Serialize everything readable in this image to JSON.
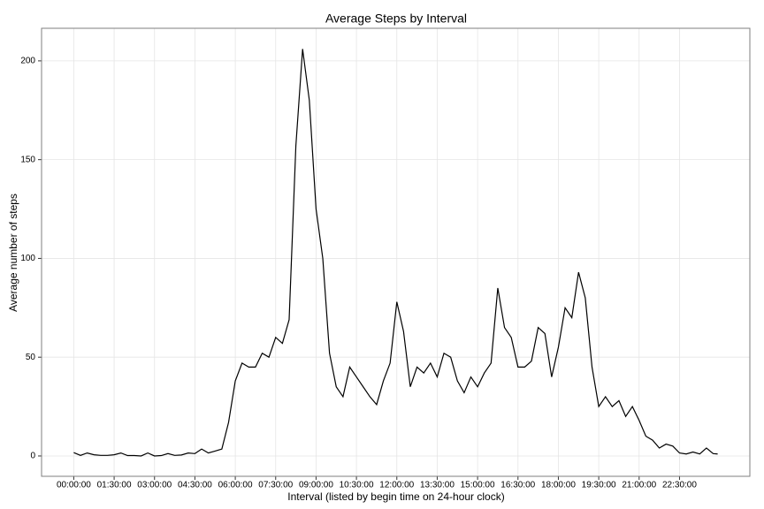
{
  "chart_data": {
    "type": "line",
    "title": "Average Steps by Interval",
    "xlabel": "Interval (listed by begin time on 24-hour clock)",
    "ylabel": "Average number of steps",
    "x": [
      0,
      900,
      1800,
      2700,
      3600,
      4500,
      5400,
      6300,
      7200,
      8100,
      9000,
      9900,
      10800,
      11700,
      12600,
      13500,
      14400,
      15300,
      16200,
      17100,
      18000,
      18900,
      19800,
      20700,
      21600,
      22500,
      23400,
      24300,
      25200,
      26100,
      27000,
      27900,
      28800,
      29700,
      30600,
      31500,
      32400,
      33300,
      34200,
      35100,
      36000,
      36900,
      37800,
      38700,
      39600,
      40500,
      41400,
      42300,
      43200,
      44100,
      45000,
      45900,
      46800,
      47700,
      48600,
      49500,
      50400,
      51300,
      52200,
      53100,
      54000,
      54900,
      55800,
      56700,
      57600,
      58500,
      59400,
      60300,
      61200,
      62100,
      63000,
      63900,
      64800,
      65700,
      66600,
      67500,
      68400,
      69300,
      70200,
      71100,
      72000,
      72900,
      73800,
      74700,
      75600,
      76500,
      77400,
      78300,
      79200,
      80100,
      81000,
      81900,
      82800,
      83700,
      84600,
      85500,
      86100
    ],
    "series": [
      {
        "name": "Average steps",
        "color": "#000000",
        "values": [
          1.7,
          0.3,
          1.5,
          0.6,
          0.3,
          0.3,
          0.6,
          1.5,
          0.2,
          0.2,
          0,
          1.5,
          0,
          0.2,
          1.2,
          0.3,
          0.5,
          1.5,
          1.2,
          3.5,
          1.5,
          2.5,
          3.5,
          17,
          38,
          47,
          45,
          45,
          52,
          50,
          60,
          57,
          69,
          157,
          206,
          180,
          125,
          100,
          52,
          35,
          30,
          45,
          40,
          35,
          30,
          26,
          38,
          47,
          78,
          63,
          35,
          45,
          42,
          47,
          40,
          52,
          50,
          38,
          32,
          40,
          35,
          42,
          47,
          85,
          65,
          60,
          45,
          45,
          48,
          65,
          62,
          40,
          55,
          75,
          70,
          93,
          80,
          45,
          25,
          30,
          25,
          28,
          20,
          25,
          18,
          10,
          8,
          4,
          6,
          5,
          1.5,
          1,
          2,
          1,
          4,
          1.2,
          1
        ]
      }
    ],
    "xlim": [
      -4305,
      90405
    ],
    "xticks": [
      {
        "value": 0,
        "label": "00:00:00"
      },
      {
        "value": 5400,
        "label": "01:30:00"
      },
      {
        "value": 10800,
        "label": "03:00:00"
      },
      {
        "value": 16200,
        "label": "04:30:00"
      },
      {
        "value": 21600,
        "label": "06:00:00"
      },
      {
        "value": 27000,
        "label": "07:30:00"
      },
      {
        "value": 32400,
        "label": "09:00:00"
      },
      {
        "value": 37800,
        "label": "10:30:00"
      },
      {
        "value": 43200,
        "label": "12:00:00"
      },
      {
        "value": 48600,
        "label": "13:30:00"
      },
      {
        "value": 54000,
        "label": "15:00:00"
      },
      {
        "value": 59400,
        "label": "16:30:00"
      },
      {
        "value": 64800,
        "label": "18:00:00"
      },
      {
        "value": 70200,
        "label": "19:30:00"
      },
      {
        "value": 75600,
        "label": "21:00:00"
      },
      {
        "value": 81000,
        "label": "22:30:00"
      }
    ],
    "ylim": [
      -10.3,
      216.5
    ],
    "yticks": [
      0,
      50,
      100,
      150,
      200
    ],
    "grid": true
  }
}
